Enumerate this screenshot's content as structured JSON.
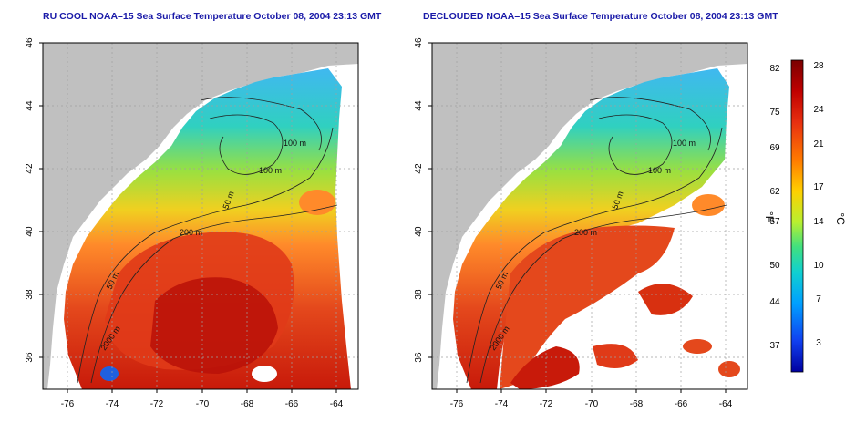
{
  "titles": {
    "left": "RU COOL NOAA–15 Sea Surface Temperature October 08, 2004 23:13 GMT",
    "right": "DECLOUDED NOAA–15 Sea Surface Temperature October 08, 2004 23:13 GMT"
  },
  "axes": {
    "lat_ticks": [
      "46",
      "44",
      "42",
      "40",
      "38",
      "36"
    ],
    "lon_ticks": [
      "-76",
      "-74",
      "-72",
      "-70",
      "-68",
      "-66",
      "-64"
    ],
    "lat_range": [
      35,
      46
    ],
    "lon_range": [
      -77,
      -63.3
    ]
  },
  "contours": {
    "labels_left": [
      "100 m",
      "100 m",
      "50 m",
      "200 m",
      "50 m",
      "2000 m"
    ],
    "labels_right": [
      "100 m",
      "100 m",
      "50 m",
      "200 m",
      "50 m",
      "2000 m"
    ]
  },
  "colorbar": {
    "fahrenheit_ticks": [
      "82",
      "75",
      "69",
      "62",
      "57",
      "50",
      "44",
      "37"
    ],
    "celsius_ticks": [
      "28",
      "24",
      "21",
      "17",
      "14",
      "10",
      "7",
      "3"
    ],
    "fahrenheit_unit": "°F",
    "celsius_unit": "°C",
    "colors": [
      "#7a0000",
      "#c00000",
      "#e83010",
      "#ff7a00",
      "#ffd000",
      "#b8f030",
      "#40e080",
      "#10d0d0",
      "#00a0ff",
      "#1040f0",
      "#0000a0"
    ]
  },
  "colors": {
    "land": "#c0c0c0",
    "ocean_warm": "#e4481c",
    "ocean_hot": "#c81a0a",
    "ocean_mid": "#ff8a2a",
    "ocean_cool": "#8ee040",
    "ocean_cold": "#40b8f0",
    "title": "#1a1aa8"
  }
}
